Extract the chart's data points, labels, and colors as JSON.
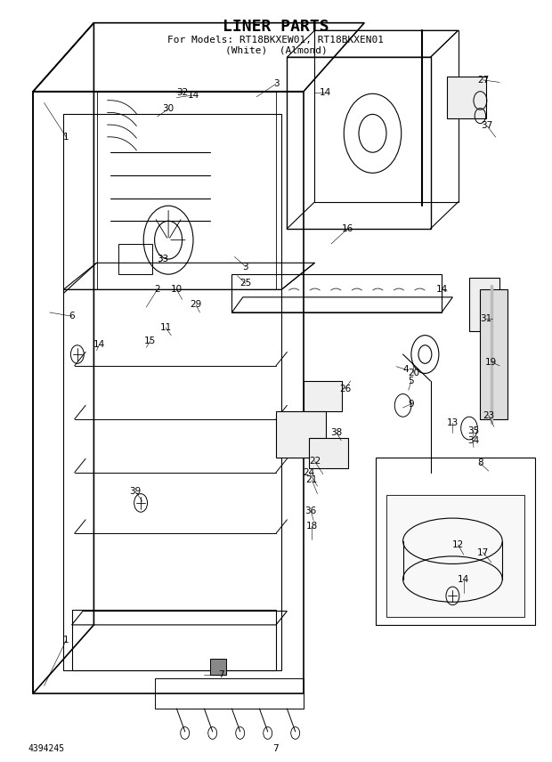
{
  "title_line1": "LINER PARTS",
  "title_line2": "For Models: RT18BKXEW01, RT18BKXEN01",
  "title_line3": "(White)  (Almond)",
  "page_number": "7",
  "part_number": "4394245",
  "background_color": "#ffffff",
  "line_color": "#000000",
  "title_fontsize": 13,
  "subtitle_fontsize": 8,
  "label_fontsize": 7.5,
  "fig_width": 6.2,
  "fig_height": 8.56,
  "dpi": 100
}
